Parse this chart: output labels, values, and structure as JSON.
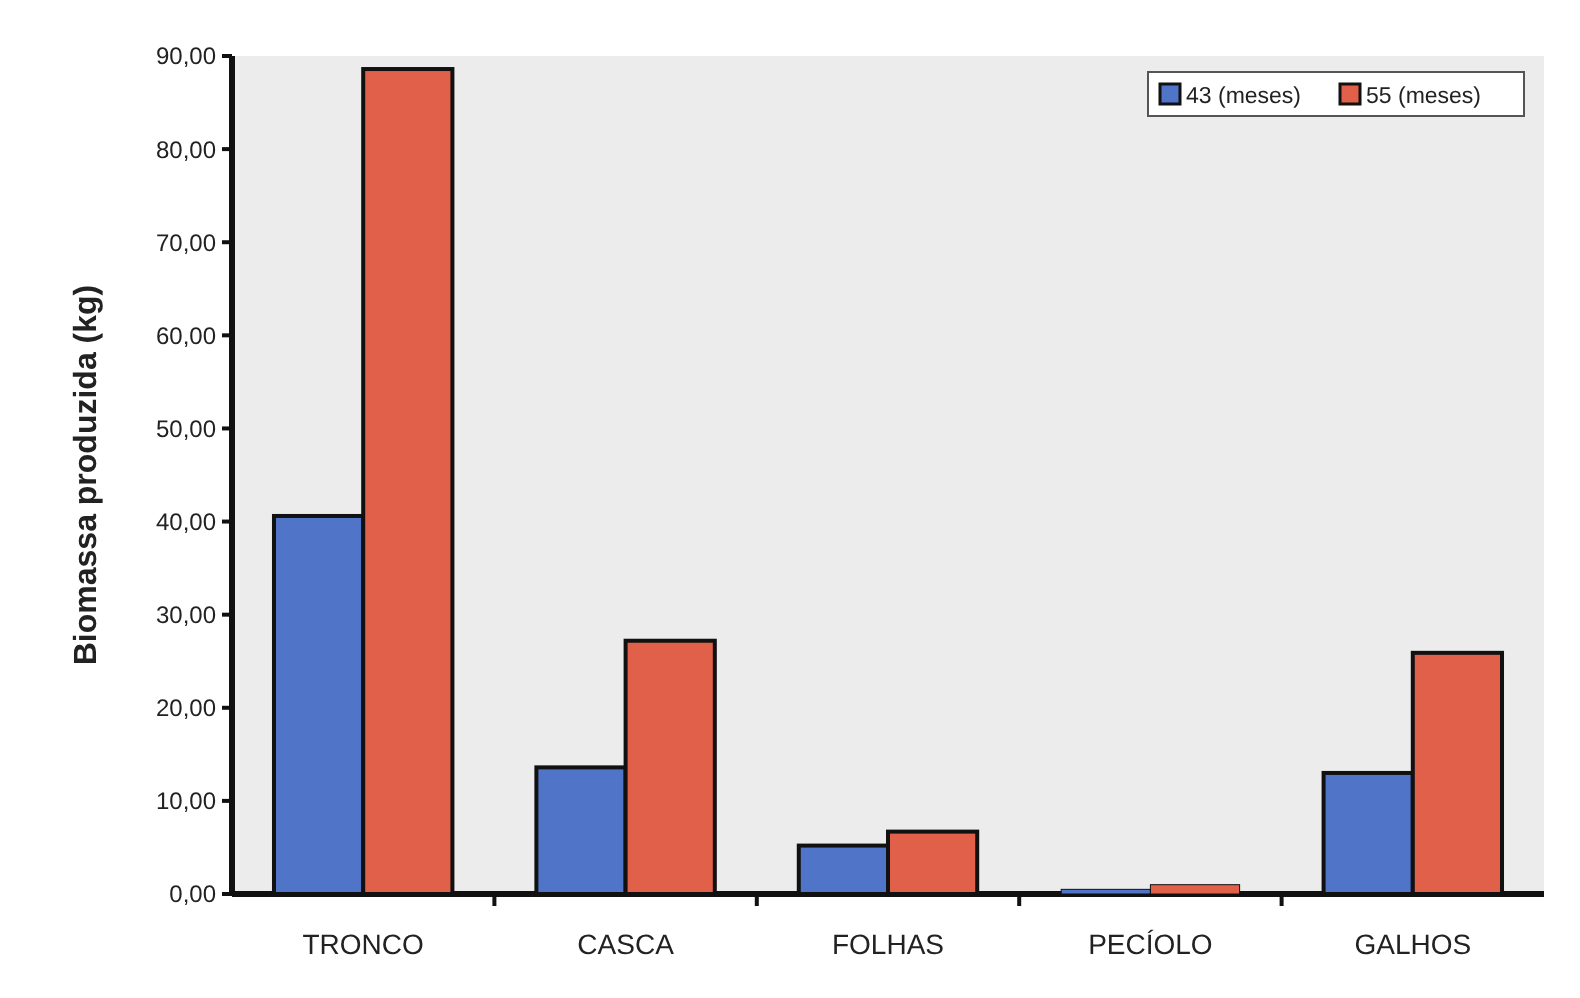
{
  "chart_data": {
    "type": "bar",
    "ylabel": "Biomassa produzida (kg)",
    "categories": [
      "TRONCO",
      "CASCA",
      "FOLHAS",
      "PECÍOLO",
      "GALHOS"
    ],
    "series": [
      {
        "name": "43 (meses)",
        "color": "#4f74c8",
        "values": [
          40.6,
          13.6,
          5.2,
          0.5,
          13.0
        ]
      },
      {
        "name": "55 (meses)",
        "color": "#e0604a",
        "values": [
          88.6,
          27.2,
          6.7,
          1.0,
          25.9
        ]
      }
    ],
    "ylim": [
      0,
      90
    ],
    "yticks": [
      {
        "value": 0,
        "label": "0,00"
      },
      {
        "value": 10,
        "label": "10,00"
      },
      {
        "value": 20,
        "label": "20,00"
      },
      {
        "value": 30,
        "label": "30,00"
      },
      {
        "value": 40,
        "label": "40,00"
      },
      {
        "value": 50,
        "label": "50,00"
      },
      {
        "value": 60,
        "label": "60,00"
      },
      {
        "value": 70,
        "label": "70,00"
      },
      {
        "value": 80,
        "label": "80,00"
      },
      {
        "value": 90,
        "label": "90,00"
      }
    ],
    "legend": "top right",
    "grid": false
  }
}
